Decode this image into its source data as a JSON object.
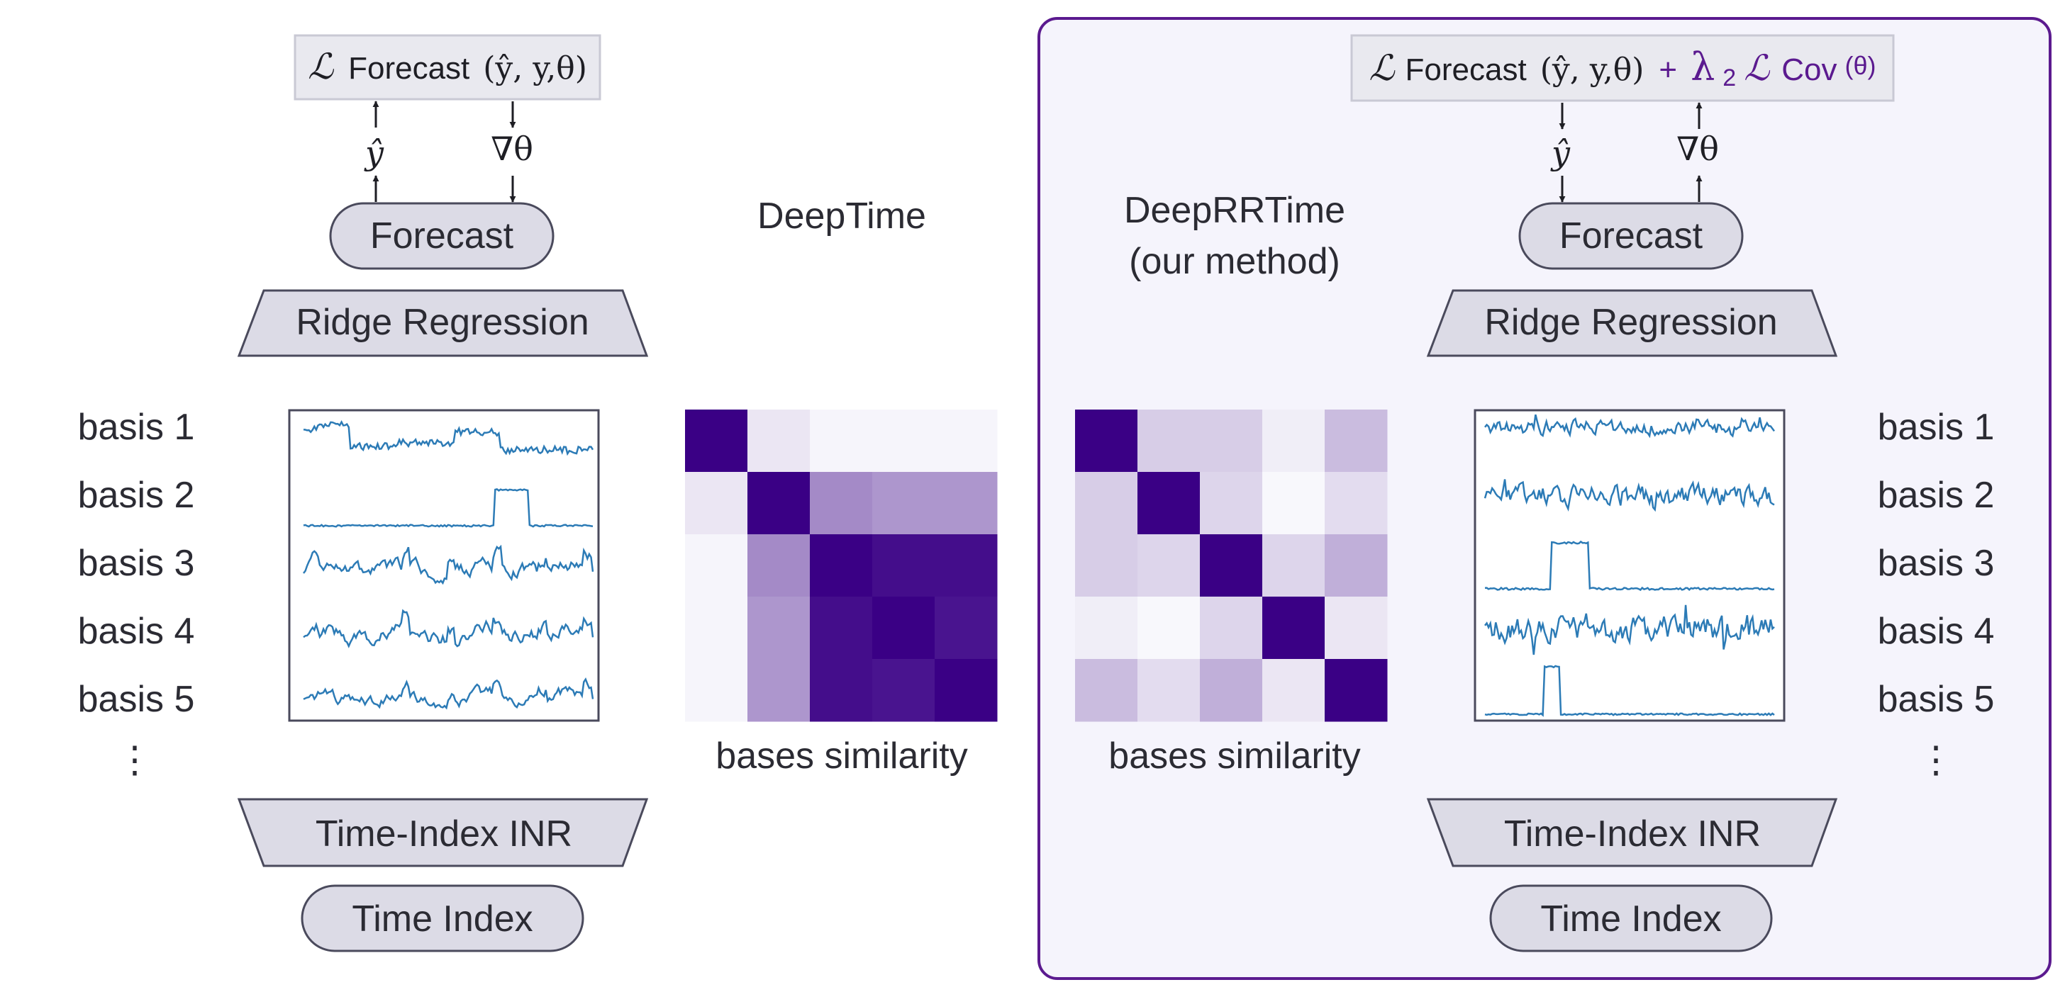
{
  "deeptime": {
    "loss": {
      "symbol": "ℒ",
      "name": "Forecast",
      "args": "(ŷ, y,θ)"
    },
    "yhat": "ŷ",
    "grad": "∇θ",
    "forecast_node": "Forecast",
    "ridge": "Ridge Regression",
    "title": "DeepTime",
    "bases": [
      "basis 1",
      "basis 2",
      "basis 3",
      "basis 4",
      "basis 5"
    ],
    "ellipsis": "⋮",
    "similarity_label": "bases similarity",
    "similarity_matrix": [
      [
        1.0,
        0.08,
        0.02,
        0.02,
        0.02
      ],
      [
        0.08,
        1.0,
        0.45,
        0.4,
        0.4
      ],
      [
        0.02,
        0.45,
        1.0,
        0.95,
        0.95
      ],
      [
        0.02,
        0.4,
        0.95,
        1.0,
        0.92
      ],
      [
        0.02,
        0.4,
        0.95,
        0.92,
        1.0
      ]
    ],
    "inr": "Time-Index INR",
    "time_index": "Time Index"
  },
  "deeprrtime": {
    "loss": {
      "symbol": "ℒ",
      "name": "Forecast",
      "args": "(ŷ, y,θ)",
      "plus": "+",
      "lambda": "λ",
      "lambda_sub": "2",
      "cov_symbol": "ℒ",
      "cov_name": "Cov",
      "cov_args": "(θ)"
    },
    "yhat": "ŷ",
    "grad": "∇θ",
    "forecast_node": "Forecast",
    "ridge": "Ridge Regression",
    "title_line1": "DeepRRTime",
    "title_line2": "(our method)",
    "bases": [
      "basis 1",
      "basis 2",
      "basis 3",
      "basis 4",
      "basis 5"
    ],
    "ellipsis": "⋮",
    "similarity_label": "bases similarity",
    "similarity_matrix": [
      [
        1.0,
        0.18,
        0.18,
        0.05,
        0.25
      ],
      [
        0.18,
        1.0,
        0.15,
        0.01,
        0.12
      ],
      [
        0.18,
        0.15,
        1.0,
        0.15,
        0.3
      ],
      [
        0.05,
        0.01,
        0.15,
        1.0,
        0.08
      ],
      [
        0.25,
        0.12,
        0.3,
        0.08,
        1.0
      ]
    ],
    "inr": "Time-Index INR",
    "time_index": "Time Index"
  },
  "colors": {
    "accent_purple": "#5b1a8f",
    "heatmap_max": "#3a0085",
    "line_blue": "#2c7bb6",
    "node_fill": "#dcdbe6",
    "panel_fill": "#f5f4fc"
  }
}
